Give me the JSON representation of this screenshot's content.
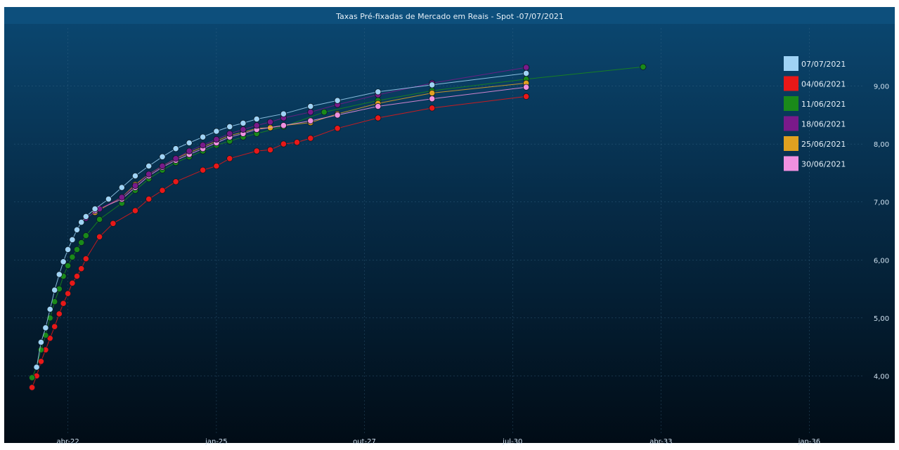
{
  "chart_data": {
    "type": "line",
    "title": "Taxas Pré-fixadas de Mercado em Reais - Spot -07/07/2021",
    "xlabel": "",
    "ylabel": "",
    "x_range": [
      "2021-04-01",
      "2036-12-31"
    ],
    "y_range": [
      3.0,
      10.0
    ],
    "y_scale": "linear",
    "grid": true,
    "legend_position": "top-right",
    "x_ticks": [
      {
        "label": "abr-22",
        "date": "2022-04-01"
      },
      {
        "label": "jan-25",
        "date": "2025-01-01"
      },
      {
        "label": "out-27",
        "date": "2027-10-01"
      },
      {
        "label": "jul-30",
        "date": "2030-07-01"
      },
      {
        "label": "abr-33",
        "date": "2033-04-01"
      },
      {
        "label": "jan-36",
        "date": "2036-01-01"
      }
    ],
    "y_ticks": [
      {
        "label": "4,00",
        "value": 4.0
      },
      {
        "label": "5,00",
        "value": 5.0
      },
      {
        "label": "6,00",
        "value": 6.0
      },
      {
        "label": "7,00",
        "value": 7.0
      },
      {
        "label": "8,00",
        "value": 8.0
      },
      {
        "label": "9,00",
        "value": 9.0
      }
    ],
    "series": [
      {
        "name": "07/07/2021",
        "color": "#9fd3f5",
        "points": [
          [
            "2021-09-01",
            4.15
          ],
          [
            "2021-10-01",
            4.58
          ],
          [
            "2021-11-01",
            4.83
          ],
          [
            "2021-12-01",
            5.15
          ],
          [
            "2022-01-01",
            5.48
          ],
          [
            "2022-02-01",
            5.75
          ],
          [
            "2022-03-01",
            5.97
          ],
          [
            "2022-04-01",
            6.18
          ],
          [
            "2022-05-01",
            6.35
          ],
          [
            "2022-06-01",
            6.52
          ],
          [
            "2022-07-01",
            6.65
          ],
          [
            "2022-08-01",
            6.75
          ],
          [
            "2022-10-01",
            6.88
          ],
          [
            "2023-01-01",
            7.05
          ],
          [
            "2023-04-01",
            7.25
          ],
          [
            "2023-07-01",
            7.45
          ],
          [
            "2023-10-01",
            7.62
          ],
          [
            "2024-01-01",
            7.78
          ],
          [
            "2024-04-01",
            7.92
          ],
          [
            "2024-07-01",
            8.02
          ],
          [
            "2024-10-01",
            8.12
          ],
          [
            "2025-01-01",
            8.22
          ],
          [
            "2025-04-01",
            8.3
          ],
          [
            "2025-07-01",
            8.36
          ],
          [
            "2025-10-01",
            8.43
          ],
          [
            "2026-04-01",
            8.52
          ],
          [
            "2026-10-01",
            8.65
          ],
          [
            "2027-04-01",
            8.75
          ],
          [
            "2028-01-01",
            8.9
          ],
          [
            "2029-01-01",
            9.02
          ],
          [
            "2030-10-01",
            9.22
          ]
        ]
      },
      {
        "name": "04/06/2021",
        "color": "#e81818",
        "points": [
          [
            "2021-08-01",
            3.8
          ],
          [
            "2021-09-01",
            4.0
          ],
          [
            "2021-10-01",
            4.25
          ],
          [
            "2021-11-01",
            4.45
          ],
          [
            "2021-12-01",
            4.65
          ],
          [
            "2022-01-01",
            4.85
          ],
          [
            "2022-02-01",
            5.07
          ],
          [
            "2022-03-01",
            5.25
          ],
          [
            "2022-04-01",
            5.42
          ],
          [
            "2022-05-01",
            5.6
          ],
          [
            "2022-06-01",
            5.72
          ],
          [
            "2022-07-01",
            5.85
          ],
          [
            "2022-08-01",
            6.02
          ],
          [
            "2022-11-01",
            6.4
          ],
          [
            "2023-02-01",
            6.63
          ],
          [
            "2023-07-01",
            6.85
          ],
          [
            "2023-10-01",
            7.05
          ],
          [
            "2024-01-01",
            7.2
          ],
          [
            "2024-04-01",
            7.35
          ],
          [
            "2024-10-01",
            7.55
          ],
          [
            "2025-01-01",
            7.62
          ],
          [
            "2025-04-01",
            7.75
          ],
          [
            "2025-10-01",
            7.88
          ],
          [
            "2026-01-01",
            7.9
          ],
          [
            "2026-04-01",
            8.0
          ],
          [
            "2026-07-01",
            8.03
          ],
          [
            "2026-10-01",
            8.1
          ],
          [
            "2027-04-01",
            8.27
          ],
          [
            "2028-01-01",
            8.45
          ],
          [
            "2029-01-01",
            8.62
          ],
          [
            "2030-10-01",
            8.82
          ]
        ]
      },
      {
        "name": "11/06/2021",
        "color": "#1a8a1a",
        "points": [
          [
            "2021-08-01",
            3.97
          ],
          [
            "2021-09-01",
            4.15
          ],
          [
            "2021-10-01",
            4.45
          ],
          [
            "2021-11-01",
            4.7
          ],
          [
            "2021-12-01",
            5.0
          ],
          [
            "2022-01-01",
            5.28
          ],
          [
            "2022-02-01",
            5.5
          ],
          [
            "2022-03-01",
            5.72
          ],
          [
            "2022-04-01",
            5.9
          ],
          [
            "2022-05-01",
            6.05
          ],
          [
            "2022-06-01",
            6.18
          ],
          [
            "2022-07-01",
            6.3
          ],
          [
            "2022-08-01",
            6.42
          ],
          [
            "2022-11-01",
            6.7
          ],
          [
            "2023-04-01",
            6.98
          ],
          [
            "2023-07-01",
            7.2
          ],
          [
            "2023-10-01",
            7.4
          ],
          [
            "2024-01-01",
            7.55
          ],
          [
            "2024-04-01",
            7.68
          ],
          [
            "2024-07-01",
            7.78
          ],
          [
            "2024-10-01",
            7.88
          ],
          [
            "2025-01-01",
            7.98
          ],
          [
            "2025-04-01",
            8.05
          ],
          [
            "2025-07-01",
            8.12
          ],
          [
            "2025-10-01",
            8.18
          ],
          [
            "2026-04-01",
            8.3
          ],
          [
            "2027-01-01",
            8.55
          ],
          [
            "2028-01-01",
            8.75
          ],
          [
            "2029-01-01",
            8.92
          ],
          [
            "2030-10-01",
            9.12
          ],
          [
            "2032-12-01",
            9.33
          ]
        ]
      },
      {
        "name": "18/06/2021",
        "color": "#7a1a8a",
        "points": [
          [
            "2022-08-01",
            6.72
          ],
          [
            "2022-11-01",
            6.88
          ],
          [
            "2023-04-01",
            7.08
          ],
          [
            "2023-07-01",
            7.28
          ],
          [
            "2023-10-01",
            7.48
          ],
          [
            "2024-01-01",
            7.62
          ],
          [
            "2024-04-01",
            7.75
          ],
          [
            "2024-07-01",
            7.88
          ],
          [
            "2024-10-01",
            7.98
          ],
          [
            "2025-01-01",
            8.08
          ],
          [
            "2025-04-01",
            8.18
          ],
          [
            "2025-07-01",
            8.25
          ],
          [
            "2025-10-01",
            8.32
          ],
          [
            "2026-01-01",
            8.38
          ],
          [
            "2026-04-01",
            8.45
          ],
          [
            "2026-10-01",
            8.55
          ],
          [
            "2027-04-01",
            8.68
          ],
          [
            "2028-01-01",
            8.85
          ],
          [
            "2029-01-01",
            9.05
          ],
          [
            "2030-10-01",
            9.32
          ]
        ]
      },
      {
        "name": "25/06/2021",
        "color": "#e0a020",
        "points": [
          [
            "2022-10-01",
            6.82
          ],
          [
            "2023-04-01",
            7.08
          ],
          [
            "2023-07-01",
            7.3
          ],
          [
            "2023-10-01",
            7.48
          ],
          [
            "2024-01-01",
            7.62
          ],
          [
            "2024-04-01",
            7.75
          ],
          [
            "2024-07-01",
            7.85
          ],
          [
            "2024-10-01",
            7.95
          ],
          [
            "2025-01-01",
            8.05
          ],
          [
            "2025-04-01",
            8.15
          ],
          [
            "2025-07-01",
            8.2
          ],
          [
            "2025-10-01",
            8.27
          ],
          [
            "2026-01-01",
            8.28
          ],
          [
            "2026-04-01",
            8.32
          ],
          [
            "2026-10-01",
            8.37
          ],
          [
            "2027-04-01",
            8.52
          ],
          [
            "2028-01-01",
            8.7
          ],
          [
            "2029-01-01",
            8.88
          ],
          [
            "2030-10-01",
            9.05
          ]
        ]
      },
      {
        "name": "30/06/2021",
        "color": "#f090e0",
        "points": [
          [
            "2022-10-01",
            6.85
          ],
          [
            "2023-04-01",
            7.05
          ],
          [
            "2023-07-01",
            7.25
          ],
          [
            "2023-10-01",
            7.45
          ],
          [
            "2024-01-01",
            7.6
          ],
          [
            "2024-04-01",
            7.72
          ],
          [
            "2024-07-01",
            7.82
          ],
          [
            "2024-10-01",
            7.92
          ],
          [
            "2025-01-01",
            8.02
          ],
          [
            "2025-04-01",
            8.12
          ],
          [
            "2025-07-01",
            8.18
          ],
          [
            "2025-10-01",
            8.25
          ],
          [
            "2026-04-01",
            8.32
          ],
          [
            "2026-10-01",
            8.4
          ],
          [
            "2027-04-01",
            8.5
          ],
          [
            "2028-01-01",
            8.65
          ],
          [
            "2029-01-01",
            8.78
          ],
          [
            "2030-10-01",
            8.98
          ]
        ]
      }
    ]
  }
}
